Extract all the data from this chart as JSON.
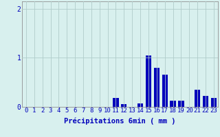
{
  "hours": [
    0,
    1,
    2,
    3,
    4,
    5,
    6,
    7,
    8,
    9,
    10,
    11,
    12,
    13,
    14,
    15,
    16,
    17,
    18,
    19,
    20,
    21,
    22,
    23
  ],
  "values": [
    0,
    0,
    0,
    0,
    0,
    0,
    0,
    0,
    0,
    0,
    0,
    0.18,
    0.05,
    0,
    0.07,
    1.05,
    0.8,
    0.65,
    0.12,
    0.12,
    0,
    0.35,
    0.22,
    0.18
  ],
  "bar_color": "#0000bb",
  "bg_color": "#d8f0ee",
  "grid_color": "#b0ccca",
  "axis_color": "#909090",
  "text_color": "#0000bb",
  "xlabel": "Précipitations 6min ( mm )",
  "ylim": [
    0,
    2.15
  ],
  "yticks": [
    0,
    1,
    2
  ],
  "xlim": [
    -0.5,
    23.5
  ],
  "xlabel_fontsize": 7.5,
  "tick_fontsize": 6.5
}
